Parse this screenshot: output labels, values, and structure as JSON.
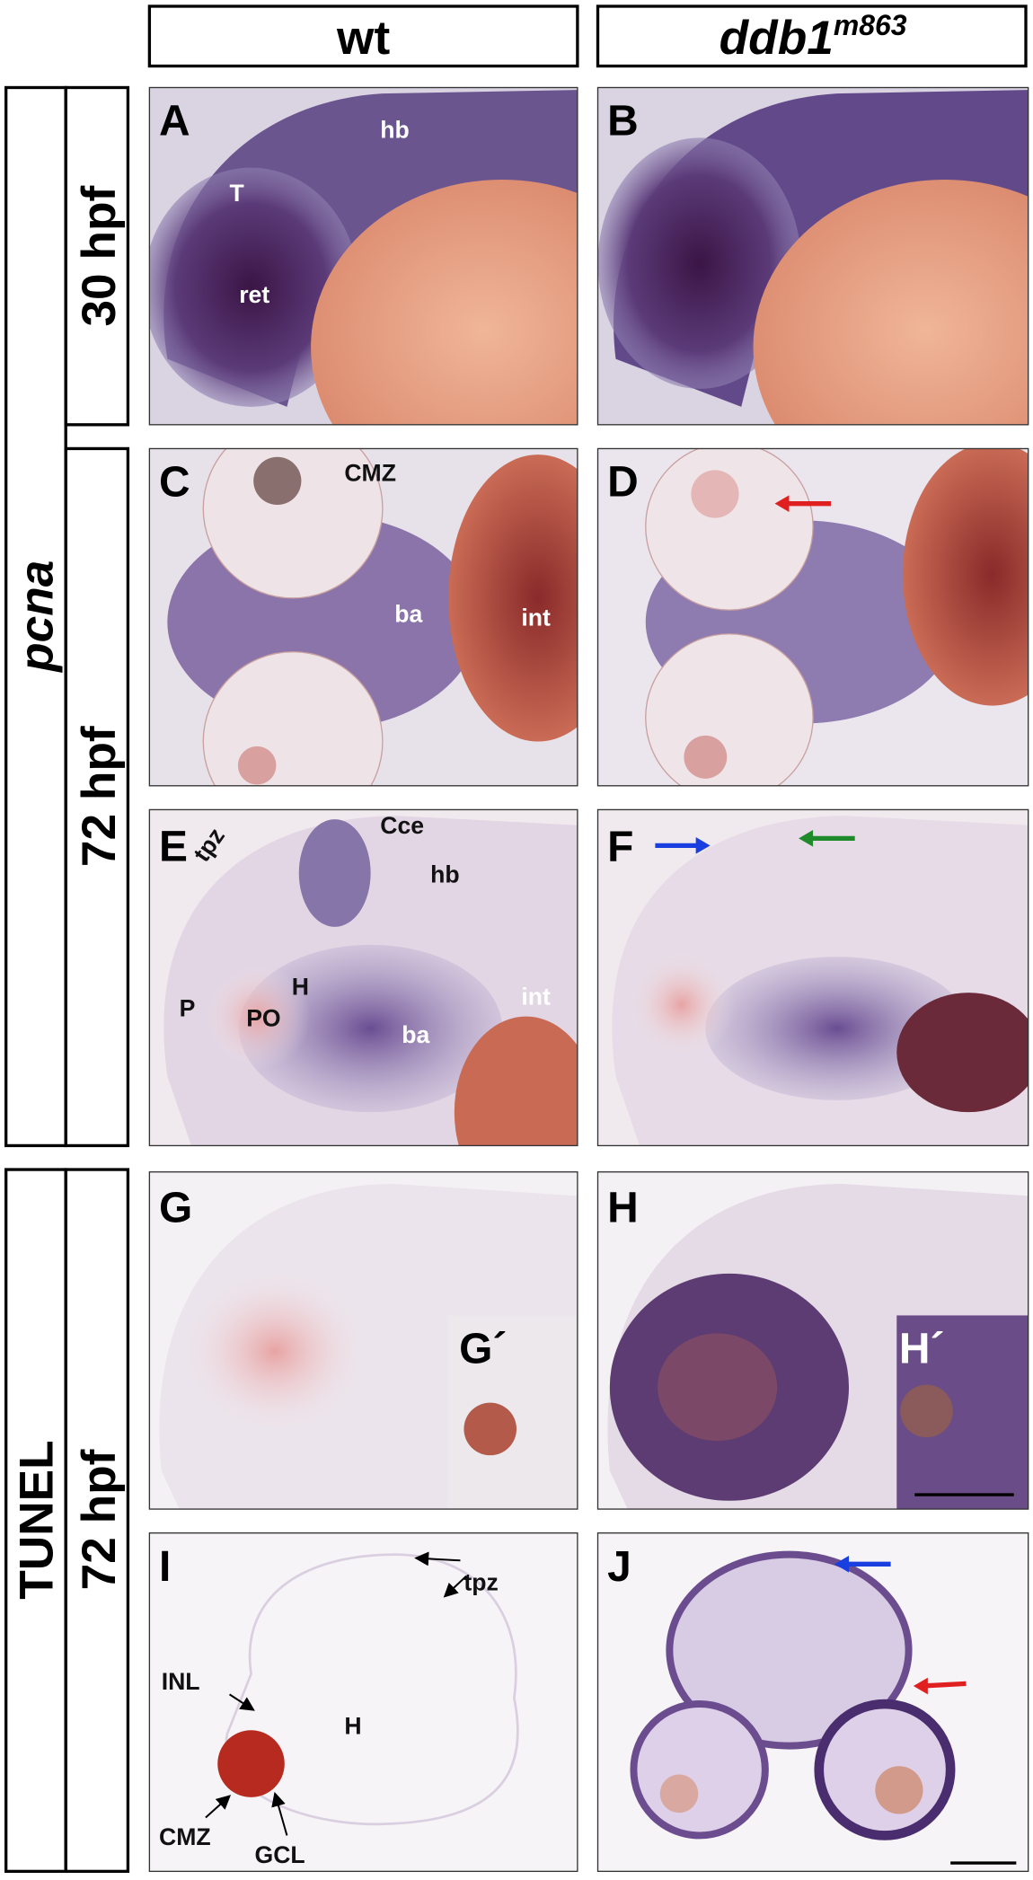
{
  "header": {
    "columns": [
      "wt",
      {
        "text": "ddb1",
        "superscript": "m863"
      }
    ]
  },
  "rows": [
    {
      "label": "pcna",
      "stages": [
        "30 hpf",
        "72 hpf"
      ]
    },
    {
      "label": "TUNEL",
      "stages": [
        "72 hpf"
      ]
    }
  ],
  "panels": [
    {
      "letter": "A",
      "labels": [
        "T",
        "ret",
        "hb"
      ]
    },
    {
      "letter": "B"
    },
    {
      "letter": "C",
      "labels": [
        "CMZ",
        "ba",
        "int"
      ]
    },
    {
      "letter": "D"
    },
    {
      "letter": "E",
      "labels": [
        "tpz",
        "Cce",
        "hb",
        "P",
        "PO",
        "H",
        "ba",
        "int"
      ]
    },
    {
      "letter": "F"
    },
    {
      "letter": "G",
      "inset": "G´"
    },
    {
      "letter": "H",
      "inset": "H´"
    },
    {
      "letter": "I",
      "labels": [
        "tpz",
        "INL",
        "H",
        "CMZ",
        "GCL"
      ]
    },
    {
      "letter": "J"
    }
  ]
}
